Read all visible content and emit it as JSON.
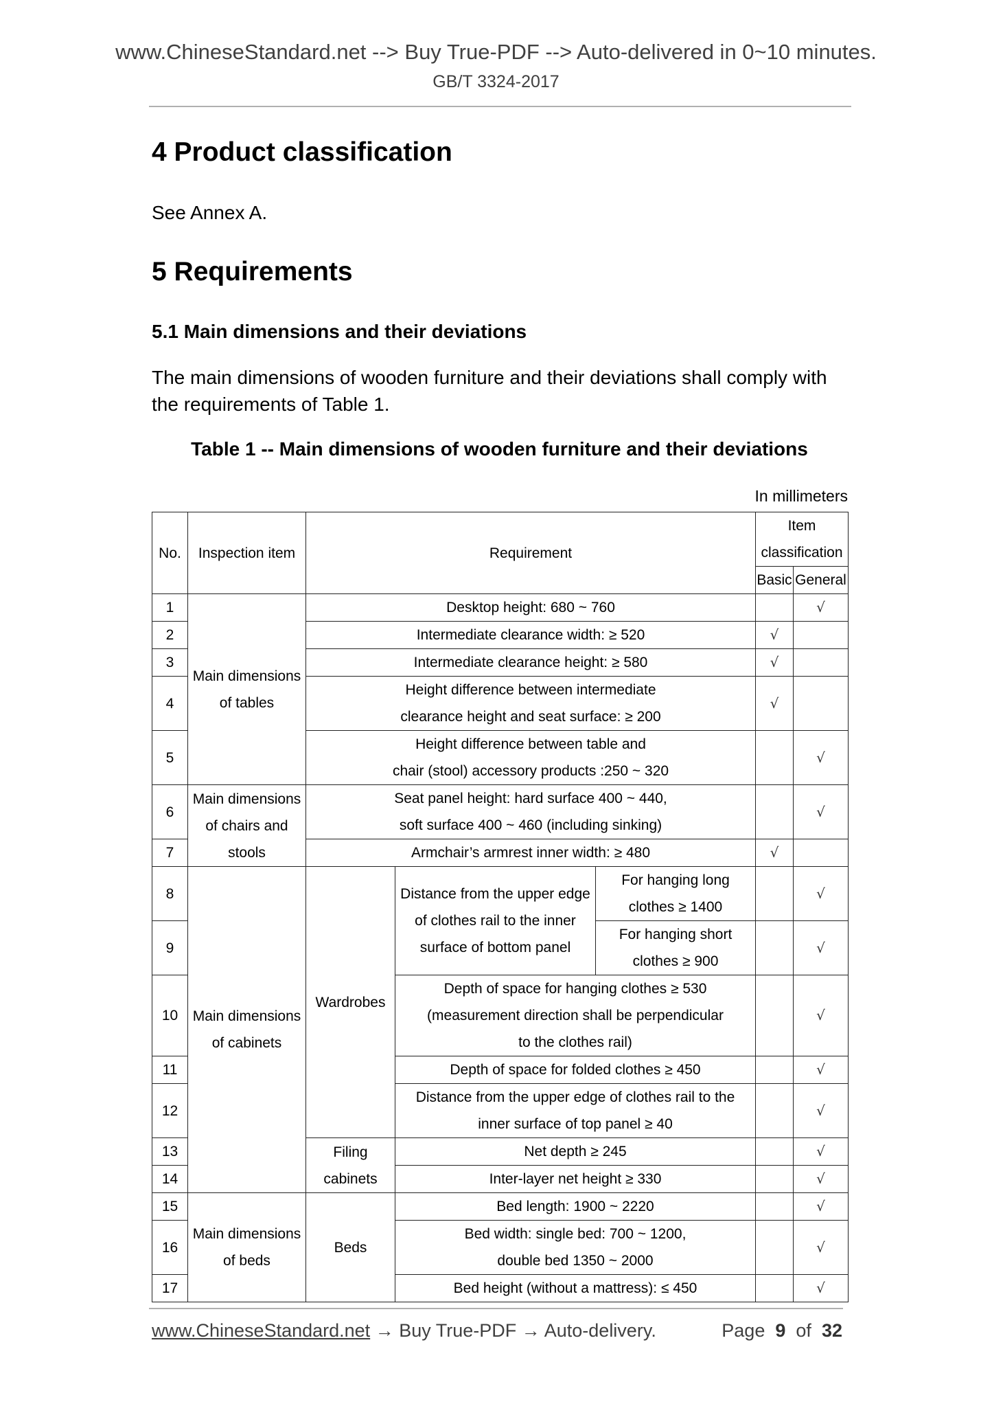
{
  "header": {
    "banner": "www.ChineseStandard.net --> Buy True-PDF --> Auto-delivered in 0~10 minutes.",
    "standard_code": "GB/T 3324-2017"
  },
  "section4": {
    "title": "4 Product classification",
    "text": "See Annex A."
  },
  "section5": {
    "title": "5 Requirements",
    "sub_title": "5.1 Main dimensions and their deviations",
    "paragraph_lines": [
      "The main dimensions of wooden furniture and their deviations shall comply with",
      "the requirements of Table 1."
    ]
  },
  "table": {
    "caption": "Table 1 -- Main dimensions of wooden furniture and their deviations",
    "unit": "In millimeters",
    "headers": {
      "no": "No.",
      "item": "Inspection item",
      "requirement": "Requirement",
      "classification_lines": [
        "Item",
        "classification"
      ],
      "basic": "Basic",
      "general": "General"
    },
    "check": "√",
    "groups": {
      "tables": [
        "Main dimensions",
        "of tables"
      ],
      "chairs": [
        "Main dimensions",
        "of chairs and",
        "stools"
      ],
      "cabinets": [
        "Main dimensions",
        "of cabinets"
      ],
      "wardrobes": "Wardrobes",
      "filing": [
        "Filing",
        "cabinets"
      ],
      "beds_group": [
        "Main dimensions",
        "of beds"
      ],
      "beds": "Beds",
      "rail_distance": [
        "Distance from the upper edge",
        "of clothes rail to the inner",
        "surface of bottom panel"
      ]
    },
    "rows": [
      {
        "no": "1",
        "req": [
          "Desktop height: 680 ~ 760"
        ],
        "basic": false,
        "general": true
      },
      {
        "no": "2",
        "req": [
          "Intermediate clearance width: ≥ 520"
        ],
        "basic": true,
        "general": false
      },
      {
        "no": "3",
        "req": [
          "Intermediate clearance height: ≥ 580"
        ],
        "basic": true,
        "general": false
      },
      {
        "no": "4",
        "req": [
          "Height difference between intermediate",
          "clearance height and seat surface: ≥ 200"
        ],
        "basic": true,
        "general": false
      },
      {
        "no": "5",
        "req": [
          "Height difference between table and",
          "chair (stool) accessory products :250 ~ 320"
        ],
        "basic": false,
        "general": true
      },
      {
        "no": "6",
        "req": [
          "Seat panel height: hard surface 400 ~ 440,",
          "soft surface 400 ~ 460 (including sinking)"
        ],
        "basic": false,
        "general": true
      },
      {
        "no": "7",
        "req": [
          "Armchair’s armrest inner width: ≥ 480"
        ],
        "basic": true,
        "general": false
      },
      {
        "no": "8",
        "req": [
          "For hanging long",
          "clothes ≥ 1400"
        ],
        "basic": false,
        "general": true
      },
      {
        "no": "9",
        "req": [
          "For hanging short",
          "clothes ≥ 900"
        ],
        "basic": false,
        "general": true
      },
      {
        "no": "10",
        "req": [
          "Depth of space for hanging clothes ≥ 530",
          "(measurement direction shall be perpendicular",
          "to the clothes rail)"
        ],
        "basic": false,
        "general": true
      },
      {
        "no": "11",
        "req": [
          "Depth of space for folded clothes ≥ 450"
        ],
        "basic": false,
        "general": true
      },
      {
        "no": "12",
        "req": [
          "Distance from the upper edge of clothes rail to the",
          "inner surface of top panel ≥ 40"
        ],
        "basic": false,
        "general": true
      },
      {
        "no": "13",
        "req": [
          "Net depth ≥ 245"
        ],
        "basic": false,
        "general": true
      },
      {
        "no": "14",
        "req": [
          "Inter-layer net height ≥ 330"
        ],
        "basic": false,
        "general": true
      },
      {
        "no": "15",
        "req": [
          "Bed length: 1900 ~ 2220"
        ],
        "basic": false,
        "general": true
      },
      {
        "no": "16",
        "req": [
          "Bed width: single bed: 700 ~ 1200,",
          "double bed 1350 ~ 2000"
        ],
        "basic": false,
        "general": true
      },
      {
        "no": "17",
        "req": [
          "Bed height (without a mattress): ≤ 450"
        ],
        "basic": false,
        "general": true
      }
    ]
  },
  "footer": {
    "link": "www.ChineseStandard.net",
    "text": " → Buy True-PDF → Auto-delivery.",
    "page_label": "Page",
    "page": "9",
    "of_label": "of",
    "total": "32"
  }
}
